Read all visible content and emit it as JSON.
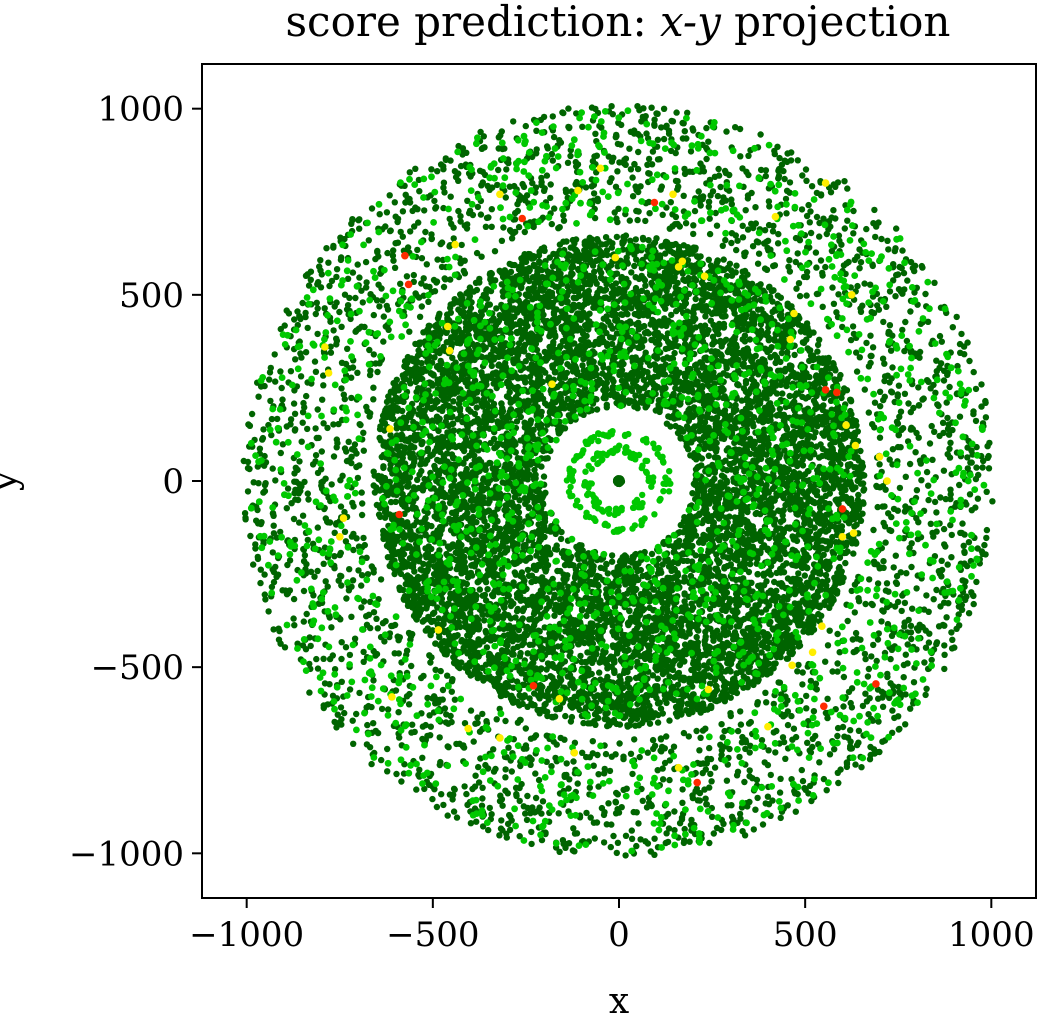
{
  "chart_data": {
    "type": "scatter",
    "title": {
      "prefix": "score prediction: ",
      "math": "x-y",
      "suffix": " projection"
    },
    "xlabel": "x",
    "ylabel": "y",
    "xlim": [
      -1120,
      1120
    ],
    "ylim": [
      -1120,
      1120
    ],
    "xticks": [
      -1000,
      -500,
      0,
      500,
      1000
    ],
    "yticks": [
      -1000,
      -500,
      0,
      500,
      1000
    ],
    "xtick_labels": [
      "−1000",
      "−500",
      "0",
      "500",
      "1000"
    ],
    "ytick_labels": [
      "−1000",
      "−500",
      "0",
      "500",
      "1000"
    ],
    "grid": false,
    "legend": "none",
    "colors": {
      "dark_green": "#006400",
      "light_green": "#00c800",
      "yellow": "#ffee00",
      "red": "#ff2a00"
    },
    "structure": {
      "rings": [
        {
          "r_min": 0,
          "r_max": 8,
          "color": "dark_green",
          "density": "sparse"
        },
        {
          "r_min": 70,
          "r_max": 95,
          "color": "light_green",
          "density": "sparse"
        },
        {
          "r_min": 120,
          "r_max": 140,
          "color": "light_green",
          "density": "sparse"
        },
        {
          "r_min": 200,
          "r_max": 660,
          "color": "dark_green",
          "density": "dense"
        },
        {
          "r_min": 690,
          "r_max": 1010,
          "color": "dark_green",
          "density": "medium"
        }
      ],
      "empty_gaps": [
        [
          140,
          200
        ],
        [
          660,
          690
        ]
      ]
    },
    "points": {
      "red": [
        [
          -260,
          705
        ],
        [
          95,
          748
        ],
        [
          -575,
          605
        ],
        [
          -565,
          528
        ],
        [
          555,
          245
        ],
        [
          585,
          238
        ],
        [
          -590,
          -90
        ],
        [
          600,
          -75
        ],
        [
          -230,
          -550
        ],
        [
          550,
          -605
        ],
        [
          690,
          -545
        ],
        [
          210,
          -810
        ]
      ],
      "yellow": [
        [
          -50,
          840
        ],
        [
          145,
          770
        ],
        [
          -320,
          770
        ],
        [
          -110,
          780
        ],
        [
          -440,
          635
        ],
        [
          -460,
          415
        ],
        [
          -455,
          350
        ],
        [
          -615,
          140
        ],
        [
          -180,
          260
        ],
        [
          -790,
          360
        ],
        [
          -780,
          290
        ],
        [
          -750,
          -150
        ],
        [
          -740,
          -100
        ],
        [
          -485,
          -400
        ],
        [
          -405,
          -665
        ],
        [
          -320,
          -690
        ],
        [
          -120,
          -730
        ],
        [
          -610,
          -580
        ],
        [
          -160,
          -585
        ],
        [
          160,
          -770
        ],
        [
          240,
          -560
        ],
        [
          400,
          -660
        ],
        [
          465,
          -495
        ],
        [
          520,
          -460
        ],
        [
          545,
          -390
        ],
        [
          600,
          -150
        ],
        [
          630,
          -140
        ],
        [
          610,
          150
        ],
        [
          635,
          95
        ],
        [
          720,
          0
        ],
        [
          700,
          65
        ],
        [
          625,
          500
        ],
        [
          470,
          450
        ],
        [
          460,
          380
        ],
        [
          420,
          710
        ],
        [
          555,
          800
        ],
        [
          160,
          575
        ],
        [
          170,
          590
        ],
        [
          230,
          550
        ],
        [
          -10,
          600
        ]
      ]
    }
  }
}
